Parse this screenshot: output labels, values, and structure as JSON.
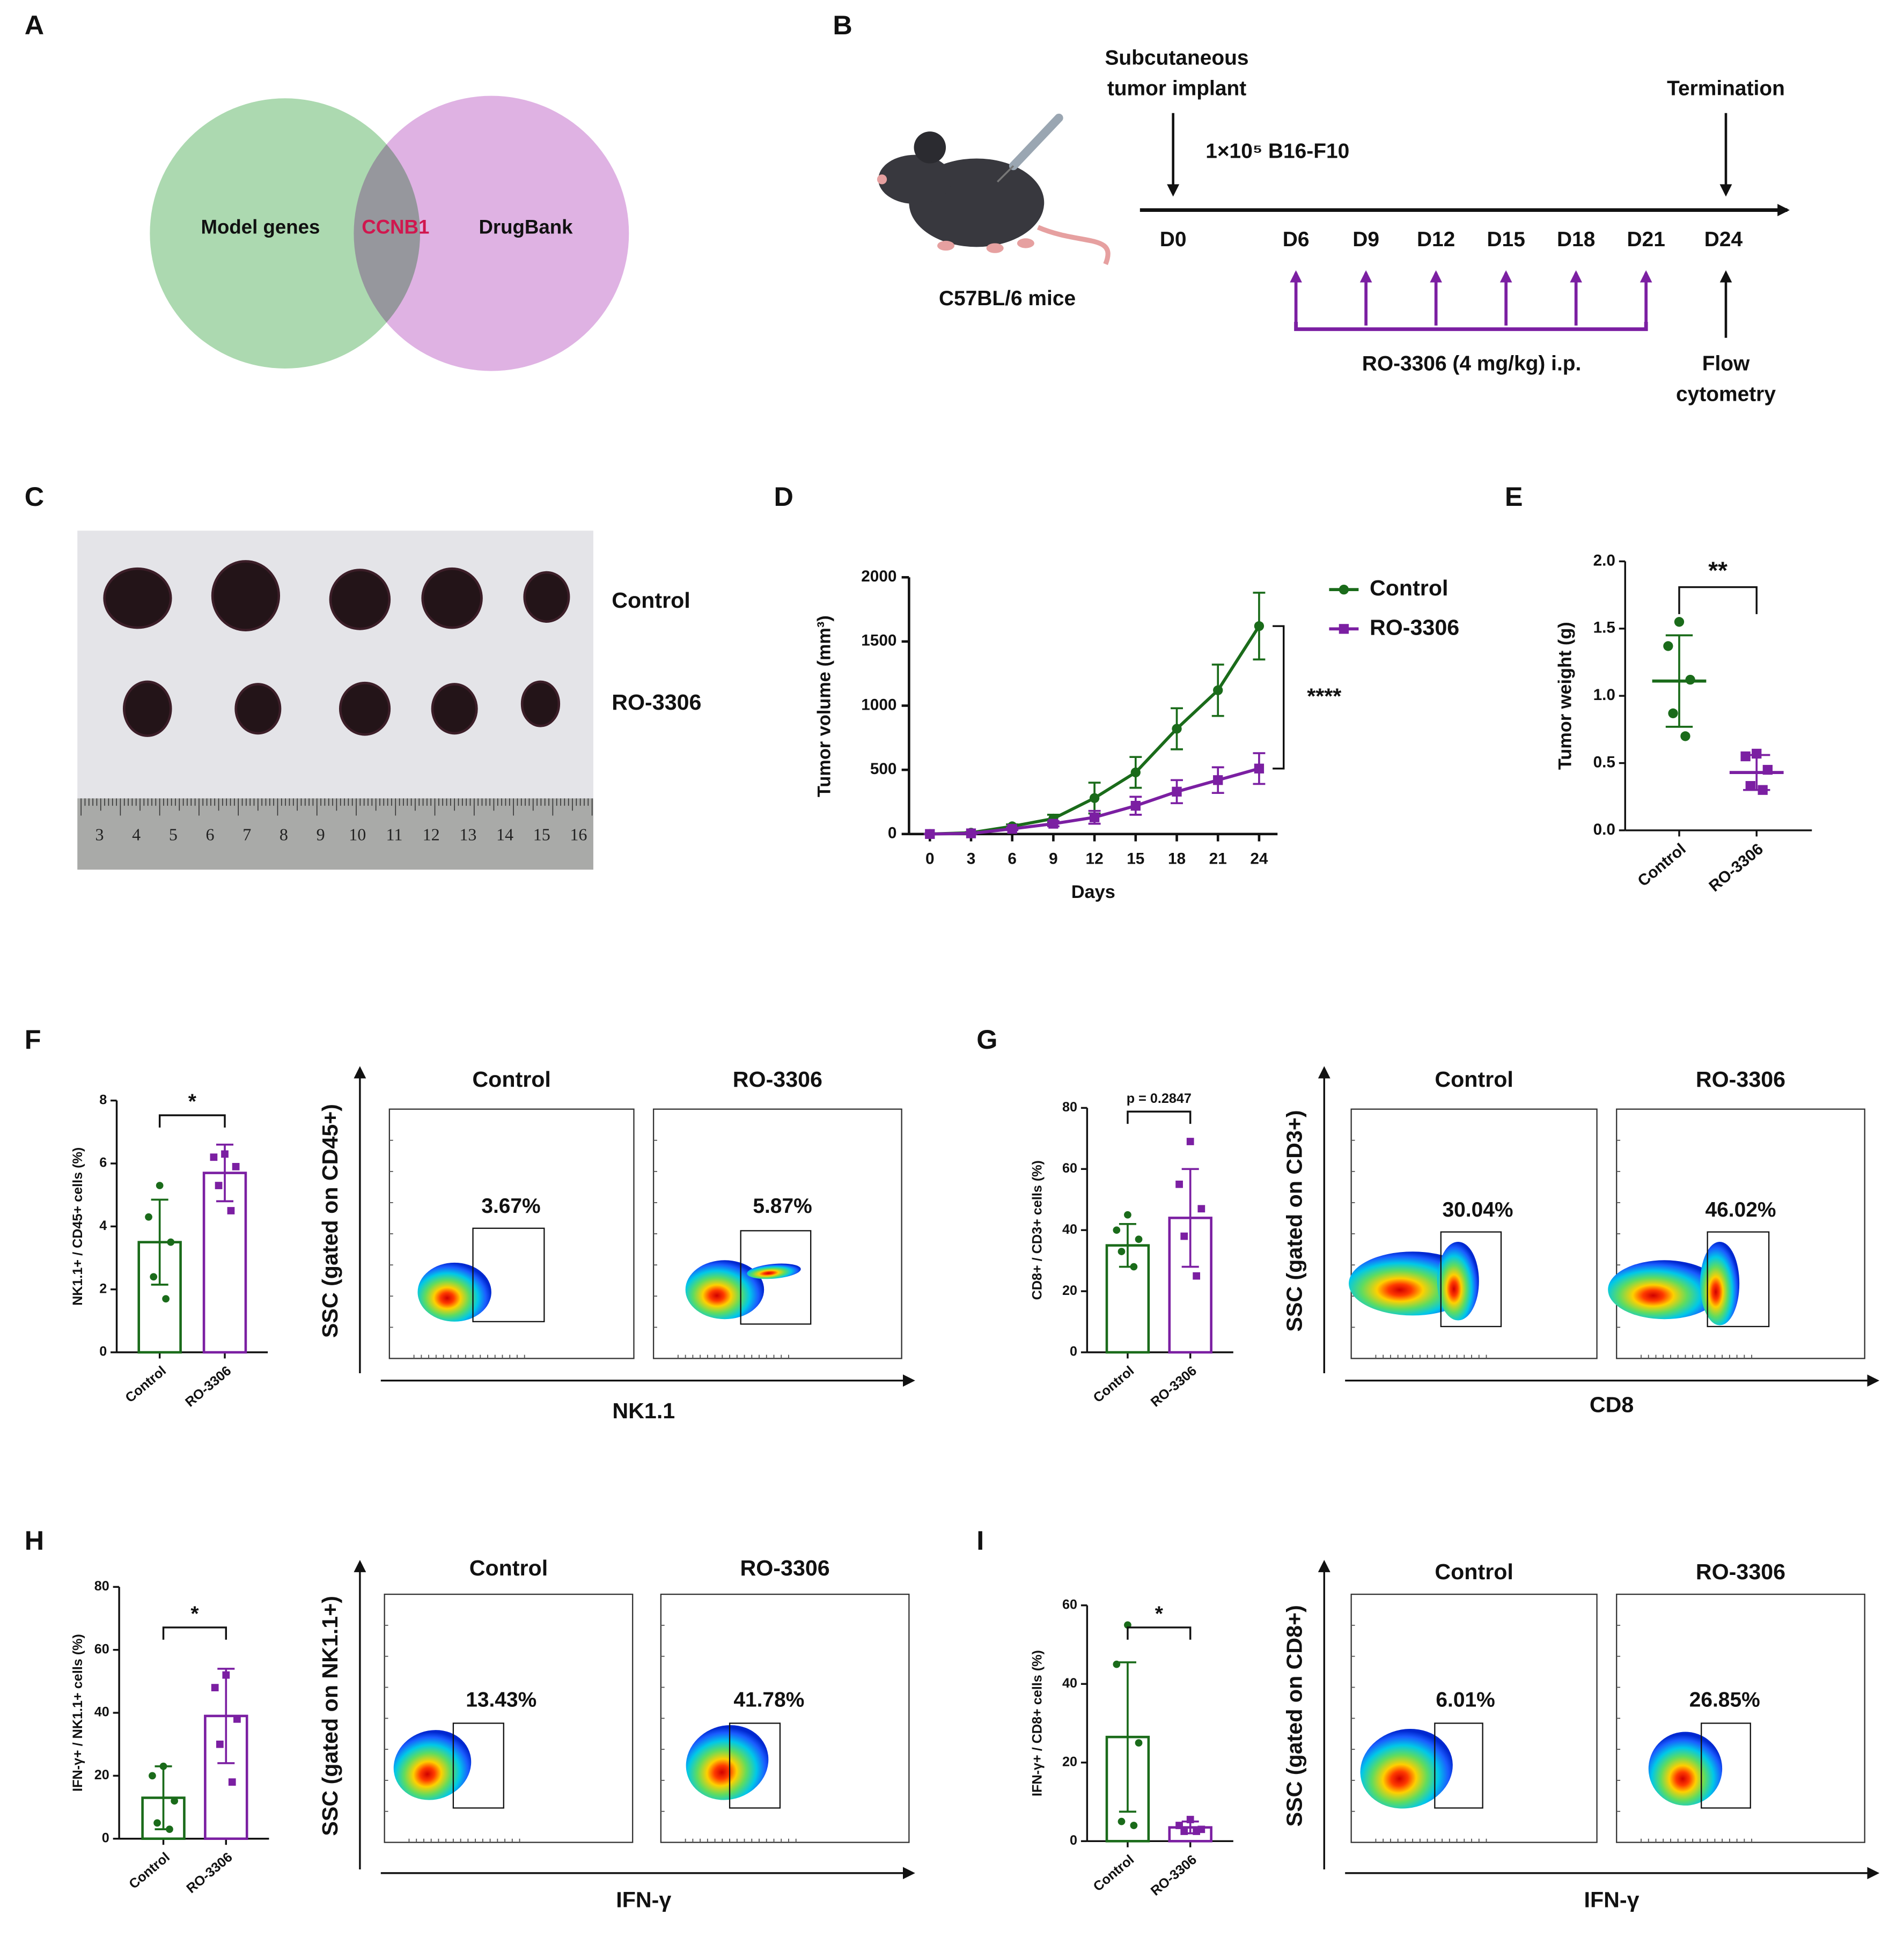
{
  "panel_labels": [
    "A",
    "B",
    "C",
    "D",
    "E",
    "F",
    "G",
    "H",
    "I"
  ],
  "venn": {
    "left": "Model genes",
    "overlap": "CCNB1",
    "right": "DrugBank"
  },
  "timeline": {
    "implant": [
      "Subcutaneous",
      "tumor implant"
    ],
    "cells": "1×10⁵ B16-F10",
    "termination": "Termination",
    "mouse": "C57BL/6 mice",
    "days": [
      "D0",
      "D6",
      "D9",
      "D12",
      "D15",
      "D18",
      "D21",
      "D24"
    ],
    "treatment": "RO-3306 (4 mg/kg) i.p.",
    "analysis": [
      "Flow",
      "cytometry"
    ]
  },
  "photo": {
    "ruler": [
      "3",
      "4",
      "5",
      "6",
      "7",
      "8",
      "9",
      "10",
      "11",
      "12",
      "13",
      "14",
      "15",
      "16"
    ],
    "groups": [
      "Control",
      "RO-3306"
    ]
  },
  "chart_data": [
    {
      "type": "line",
      "xlabel": "Days",
      "ylabel": "Tumor volume (mm³)",
      "x": [
        0,
        3,
        6,
        9,
        12,
        15,
        18,
        21,
        24
      ],
      "xlim": [
        0,
        24
      ],
      "xticks": [
        0,
        3,
        6,
        9,
        12,
        15,
        18,
        21,
        24
      ],
      "ylim": [
        0,
        2000
      ],
      "yticks": [
        0,
        500,
        1000,
        1500,
        2000
      ],
      "series": [
        {
          "name": "Control",
          "color": "#1a6b1a",
          "marker": "circle",
          "values": [
            0,
            10,
            60,
            120,
            280,
            480,
            820,
            1120,
            1620
          ],
          "errors": [
            0,
            5,
            15,
            30,
            120,
            120,
            160,
            200,
            260
          ]
        },
        {
          "name": "RO-3306",
          "color": "#7b1fa2",
          "marker": "square",
          "values": [
            0,
            5,
            40,
            80,
            130,
            220,
            330,
            420,
            510
          ],
          "errors": [
            0,
            5,
            10,
            20,
            50,
            70,
            90,
            100,
            120
          ]
        }
      ],
      "annotation": "****"
    },
    {
      "type": "dot",
      "ylabel": "Tumor weight (g)",
      "categories": [
        "Control",
        "RO-3306"
      ],
      "colors": [
        "#1a6b1a",
        "#7b1fa2"
      ],
      "markers": [
        "circle",
        "square"
      ],
      "ylim": [
        0,
        2
      ],
      "yticks": [
        {
          "value": 0,
          "label": "0.0"
        },
        {
          "value": 0.5,
          "label": "0.5"
        },
        {
          "value": 1,
          "label": "1.0"
        },
        {
          "value": 1.5,
          "label": "1.5"
        },
        {
          "value": 2,
          "label": "2.0"
        }
      ],
      "values": [
        1.11,
        0.43
      ],
      "errors": [
        0.34,
        0.13
      ],
      "points": [
        [
          1.55,
          1.37,
          1.12,
          0.87,
          0.7
        ],
        [
          0.57,
          0.55,
          0.45,
          0.33,
          0.3
        ]
      ],
      "annotation": "**"
    },
    {
      "type": "bar",
      "ylabel": "NK1.1+ / CD45+ cells (%)",
      "categories": [
        "Control",
        "RO-3306"
      ],
      "colors": [
        "#1a6b1a",
        "#7b1fa2"
      ],
      "markers": [
        "circle",
        "square"
      ],
      "ylim": [
        0,
        8
      ],
      "yticks": [
        0,
        2,
        4,
        6,
        8
      ],
      "values": [
        3.5,
        5.7
      ],
      "errors": [
        1.35,
        0.9
      ],
      "points": [
        [
          5.3,
          4.3,
          3.5,
          2.4,
          1.7
        ],
        [
          6.3,
          6.2,
          5.9,
          5.3,
          4.5
        ]
      ],
      "annotation": "*"
    },
    {
      "type": "bar",
      "ylabel": "CD8+ / CD3+ cells (%)",
      "categories": [
        "Control",
        "RO-3306"
      ],
      "colors": [
        "#1a6b1a",
        "#7b1fa2"
      ],
      "markers": [
        "circle",
        "square"
      ],
      "ylim": [
        0,
        80
      ],
      "yticks": [
        0,
        20,
        40,
        60,
        80
      ],
      "values": [
        35,
        44
      ],
      "errors": [
        7,
        16
      ],
      "points": [
        [
          45,
          40,
          37,
          33,
          28
        ],
        [
          69,
          55,
          47,
          38,
          25
        ]
      ],
      "annotation": "p = 0.2847"
    },
    {
      "type": "bar",
      "ylabel": "IFN-γ+ / NK1.1+ cells (%)",
      "categories": [
        "Control",
        "RO-3306"
      ],
      "colors": [
        "#1a6b1a",
        "#7b1fa2"
      ],
      "markers": [
        "circle",
        "square"
      ],
      "ylim": [
        0,
        80
      ],
      "yticks": [
        0,
        20,
        40,
        60,
        80
      ],
      "values": [
        13,
        39
      ],
      "errors": [
        10,
        15
      ],
      "points": [
        [
          23,
          20,
          12,
          5,
          3
        ],
        [
          52,
          48,
          38,
          30,
          18
        ]
      ],
      "annotation": "*"
    },
    {
      "type": "bar",
      "ylabel": "IFN-γ+ / CD8+ cells (%)",
      "categories": [
        "Control",
        "RO-3306"
      ],
      "colors": [
        "#1a6b1a",
        "#7b1fa2"
      ],
      "markers": [
        "circle",
        "square"
      ],
      "ylim": [
        0,
        60
      ],
      "yticks": [
        0,
        20,
        40,
        60
      ],
      "values": [
        26.5,
        3.5
      ],
      "errors": [
        19,
        1.5
      ],
      "points": [
        [
          55,
          45,
          25,
          5,
          4
        ],
        [
          5.5,
          4,
          3,
          2.5,
          2.5
        ]
      ],
      "annotation": "*"
    }
  ],
  "flow": [
    {
      "ylabel": "SSC (gated on CD45+)",
      "xlabel": "NK1.1",
      "groups": [
        "Control",
        "RO-3306"
      ],
      "gates": [
        "3.67%",
        "5.87%"
      ]
    },
    {
      "ylabel": "SSC (gated on CD3+)",
      "xlabel": "CD8",
      "groups": [
        "Control",
        "RO-3306"
      ],
      "gates": [
        "30.04%",
        "46.02%"
      ]
    },
    {
      "ylabel": "SSC (gated on NK1.1+)",
      "xlabel": "IFN-γ",
      "groups": [
        "Control",
        "RO-3306"
      ],
      "gates": [
        "13.43%",
        "41.78%"
      ]
    },
    {
      "ylabel": "SSC (gated on CD8+)",
      "xlabel": "IFN-γ",
      "groups": [
        "Control",
        "RO-3306"
      ],
      "gates": [
        "6.01%",
        "26.85%"
      ]
    }
  ]
}
